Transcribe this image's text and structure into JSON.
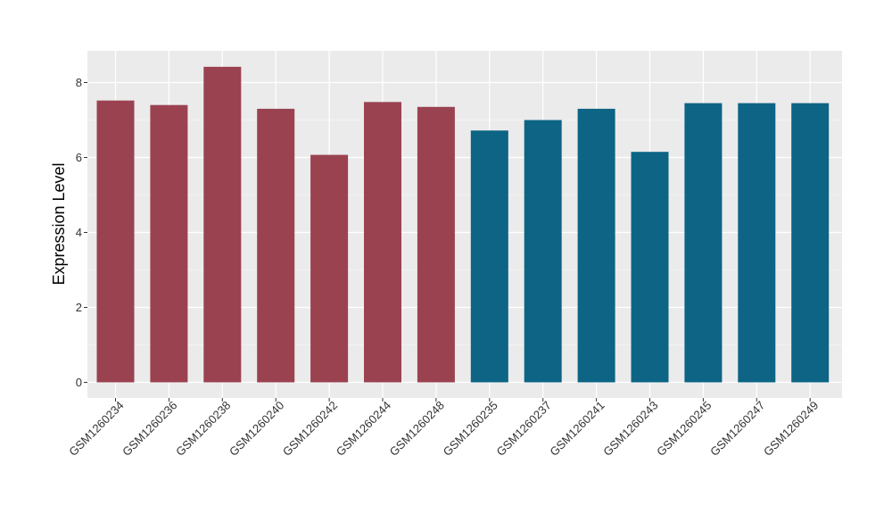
{
  "chart_data": {
    "type": "bar",
    "title": "",
    "xlabel": "",
    "ylabel": "Expression Level",
    "ylim": [
      0,
      8.8
    ],
    "y_ticks": [
      0,
      2,
      4,
      6,
      8
    ],
    "grid": true,
    "background": "#EBEBEB",
    "categories": [
      "GSM1260234",
      "GSM1260236",
      "GSM1260238",
      "GSM1260240",
      "GSM1260242",
      "GSM1260244",
      "GSM1260248",
      "GSM1260235",
      "GSM1260237",
      "GSM1260241",
      "GSM1260243",
      "GSM1260245",
      "GSM1260247",
      "GSM1260249"
    ],
    "values": [
      7.52,
      7.4,
      8.42,
      7.3,
      6.07,
      7.48,
      7.35,
      6.72,
      7.0,
      7.3,
      6.15,
      7.45,
      7.45,
      7.45
    ],
    "bar_colors": [
      "#9A4250",
      "#9A4250",
      "#9A4250",
      "#9A4250",
      "#9A4250",
      "#9A4250",
      "#9A4250",
      "#0D6484",
      "#0D6484",
      "#0D6484",
      "#0D6484",
      "#0D6484",
      "#0D6484",
      "#0D6484"
    ],
    "legend": "none"
  }
}
